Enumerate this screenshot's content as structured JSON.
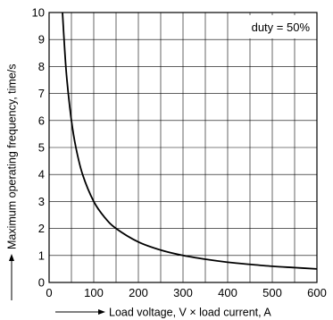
{
  "chart_data": {
    "type": "line",
    "title": "",
    "xlabel": "Load voltage, V × load current, A",
    "ylabel": "Maximum operating frequency, time/s",
    "annotation": "duty = 50%",
    "xlim": [
      0,
      600
    ],
    "ylim": [
      0,
      10
    ],
    "xticks": [
      0,
      100,
      200,
      300,
      400,
      500,
      600
    ],
    "yticks": [
      0,
      1,
      2,
      3,
      4,
      5,
      6,
      7,
      8,
      9,
      10
    ],
    "grid": true,
    "series": [
      {
        "color": "#000000",
        "x": [
          30,
          35,
          40,
          50,
          60,
          75,
          100,
          125,
          150,
          200,
          250,
          300,
          350,
          400,
          450,
          500,
          550,
          600
        ],
        "y": [
          10,
          8.6,
          7.5,
          6.0,
          5.0,
          4.0,
          3.0,
          2.4,
          2.0,
          1.5,
          1.2,
          1.0,
          0.86,
          0.75,
          0.67,
          0.6,
          0.55,
          0.5
        ]
      }
    ]
  }
}
